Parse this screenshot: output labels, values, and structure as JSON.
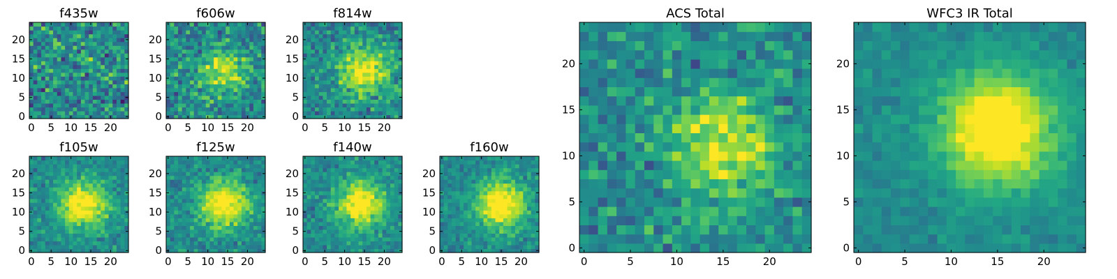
{
  "figure": {
    "description": "HST cutout panels per filter with ACS and WFC3 IR stacked totals",
    "colormap": "viridis"
  },
  "chart_data": [
    {
      "type": "heatmap",
      "id": "f435w",
      "title": "f435w",
      "grid": [
        25,
        25
      ],
      "xlim": [
        0,
        24
      ],
      "ylim": [
        0,
        24
      ],
      "x_ticks": [
        "0",
        "5",
        "10",
        "15",
        "20"
      ],
      "y_ticks": [
        "0",
        "5",
        "10",
        "15",
        "20"
      ],
      "peak": [
        13,
        13
      ],
      "signal": 0.05,
      "noise": 0.4,
      "seed": 11
    },
    {
      "type": "heatmap",
      "id": "f606w",
      "title": "f606w",
      "grid": [
        25,
        25
      ],
      "xlim": [
        0,
        24
      ],
      "ylim": [
        0,
        24
      ],
      "x_ticks": [
        "0",
        "5",
        "10",
        "15",
        "20"
      ],
      "y_ticks": [
        "0",
        "5",
        "10",
        "15",
        "20"
      ],
      "peak": [
        14,
        12
      ],
      "signal": 0.4,
      "noise": 0.35,
      "seed": 23
    },
    {
      "type": "heatmap",
      "id": "f814w",
      "title": "f814w",
      "grid": [
        25,
        25
      ],
      "xlim": [
        0,
        24
      ],
      "ylim": [
        0,
        24
      ],
      "x_ticks": [
        "0",
        "5",
        "10",
        "15",
        "20"
      ],
      "y_ticks": [
        "0",
        "5",
        "10",
        "15",
        "20"
      ],
      "peak": [
        15,
        12
      ],
      "signal": 0.55,
      "noise": 0.3,
      "seed": 37
    },
    {
      "type": "heatmap",
      "id": "f105w",
      "title": "f105w",
      "grid": [
        25,
        25
      ],
      "xlim": [
        0,
        24
      ],
      "ylim": [
        0,
        24
      ],
      "x_ticks": [
        "0",
        "5",
        "10",
        "15",
        "20"
      ],
      "y_ticks": [
        "0",
        "5",
        "10",
        "15",
        "20"
      ],
      "peak": [
        13,
        12
      ],
      "signal": 0.6,
      "noise": 0.22,
      "seed": 41
    },
    {
      "type": "heatmap",
      "id": "f125w",
      "title": "f125w",
      "grid": [
        25,
        25
      ],
      "xlim": [
        0,
        24
      ],
      "ylim": [
        0,
        24
      ],
      "x_ticks": [
        "0",
        "5",
        "10",
        "15",
        "20"
      ],
      "y_ticks": [
        "0",
        "5",
        "10",
        "15",
        "20"
      ],
      "peak": [
        14,
        12
      ],
      "signal": 0.6,
      "noise": 0.22,
      "seed": 53
    },
    {
      "type": "heatmap",
      "id": "f140w",
      "title": "f140w",
      "grid": [
        25,
        25
      ],
      "xlim": [
        0,
        24
      ],
      "ylim": [
        0,
        24
      ],
      "x_ticks": [
        "0",
        "5",
        "10",
        "15",
        "20"
      ],
      "y_ticks": [
        "0",
        "5",
        "10",
        "15",
        "20"
      ],
      "peak": [
        14,
        12
      ],
      "signal": 0.6,
      "noise": 0.22,
      "seed": 67
    },
    {
      "type": "heatmap",
      "id": "f160w",
      "title": "f160w",
      "grid": [
        25,
        25
      ],
      "xlim": [
        0,
        24
      ],
      "ylim": [
        0,
        24
      ],
      "x_ticks": [
        "0",
        "5",
        "10",
        "15",
        "20"
      ],
      "y_ticks": [
        "0",
        "5",
        "10",
        "15",
        "20"
      ],
      "peak": [
        15,
        12
      ],
      "signal": 0.65,
      "noise": 0.2,
      "seed": 79
    },
    {
      "type": "heatmap",
      "id": "acs-total",
      "title": "ACS Total",
      "grid": [
        25,
        25
      ],
      "xlim": [
        0,
        24
      ],
      "ylim": [
        0,
        24
      ],
      "x_ticks": [
        "0",
        "5",
        "10",
        "15",
        "20"
      ],
      "y_ticks": [
        "0",
        "5",
        "10",
        "15",
        "20"
      ],
      "peak": [
        15,
        11
      ],
      "signal": 0.45,
      "noise": 0.28,
      "seed": 97
    },
    {
      "type": "heatmap",
      "id": "wfc3-ir-total",
      "title": "WFC3 IR Total",
      "grid": [
        25,
        25
      ],
      "xlim": [
        0,
        24
      ],
      "ylim": [
        0,
        24
      ],
      "x_ticks": [
        "0",
        "5",
        "10",
        "15",
        "20"
      ],
      "y_ticks": [
        "0",
        "5",
        "10",
        "15",
        "20"
      ],
      "peak": [
        15,
        13
      ],
      "signal": 0.7,
      "noise": 0.12,
      "seed": 131
    }
  ]
}
